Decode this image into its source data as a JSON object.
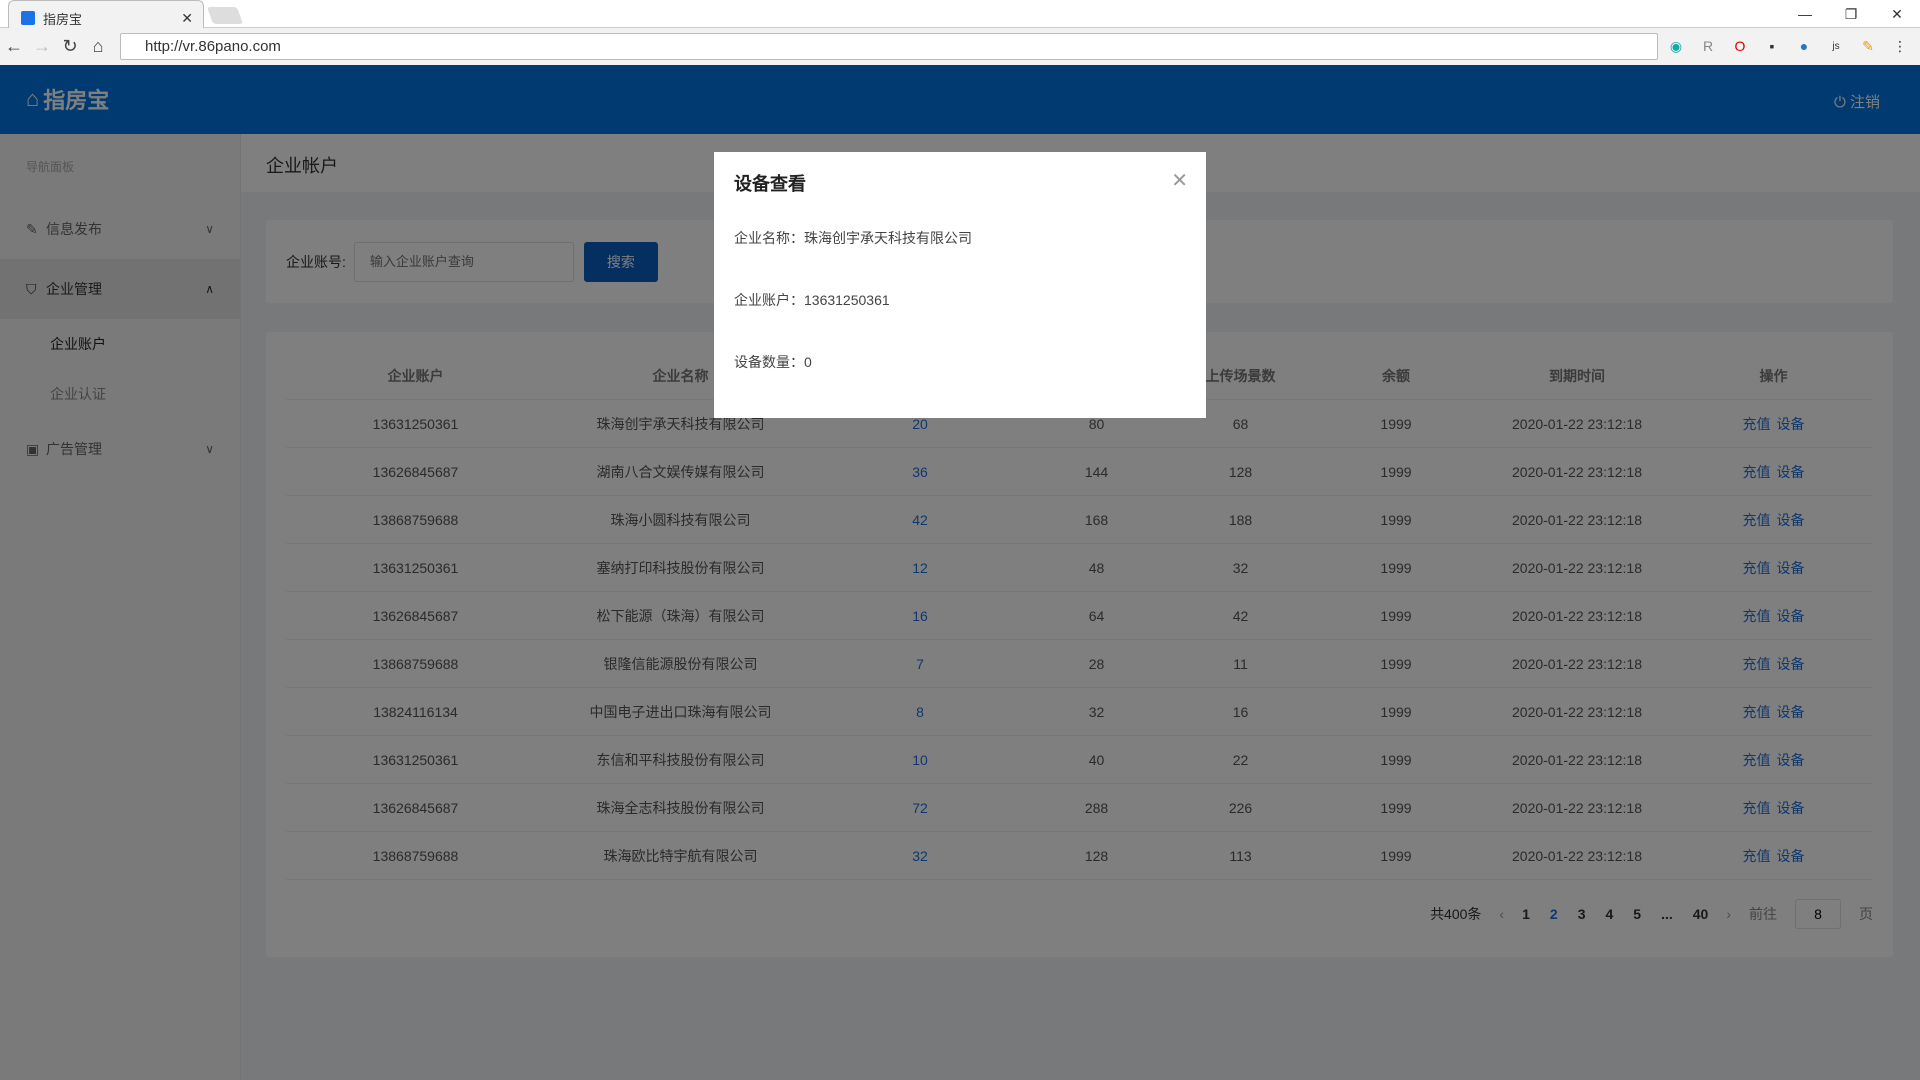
{
  "browser": {
    "tab_title": "指房宝",
    "url": "http://vr.86pano.com"
  },
  "header": {
    "logo_text": "指房宝",
    "logout_label": "注销"
  },
  "sidebar": {
    "nav_title": "导航面板",
    "menus": [
      {
        "label": "信息发布",
        "icon": "edit-icon",
        "expanded": false
      },
      {
        "label": "企业管理",
        "icon": "shield-icon",
        "expanded": true,
        "children": [
          "企业账户",
          "企业认证"
        ]
      },
      {
        "label": "广告管理",
        "icon": "ad-icon",
        "expanded": false
      }
    ]
  },
  "page": {
    "title": "企业帐户"
  },
  "search": {
    "label": "企业账号:",
    "placeholder": "输入企业账户查询",
    "button": "搜索"
  },
  "table": {
    "headers": [
      "企业账户",
      "企业名称",
      "",
      "",
      "上传场景数",
      "余额",
      "到期时间",
      "操作"
    ],
    "rows": [
      [
        "13631250361",
        "珠海创宇承天科技有限公司",
        "20",
        "80",
        "68",
        "1999",
        "2020-01-22 23:12:18"
      ],
      [
        "13626845687",
        "湖南八合文娱传媒有限公司",
        "36",
        "144",
        "128",
        "1999",
        "2020-01-22 23:12:18"
      ],
      [
        "13868759688",
        "珠海小圆科技有限公司",
        "42",
        "168",
        "188",
        "1999",
        "2020-01-22 23:12:18"
      ],
      [
        "13631250361",
        "塞纳打印科技股份有限公司",
        "12",
        "48",
        "32",
        "1999",
        "2020-01-22 23:12:18"
      ],
      [
        "13626845687",
        "松下能源（珠海）有限公司",
        "16",
        "64",
        "42",
        "1999",
        "2020-01-22 23:12:18"
      ],
      [
        "13868759688",
        "银隆信能源股份有限公司",
        "7",
        "28",
        "11",
        "1999",
        "2020-01-22 23:12:18"
      ],
      [
        "13824116134",
        "中国电子进出口珠海有限公司",
        "8",
        "32",
        "16",
        "1999",
        "2020-01-22 23:12:18"
      ],
      [
        "13631250361",
        "东信和平科技股份有限公司",
        "10",
        "40",
        "22",
        "1999",
        "2020-01-22 23:12:18"
      ],
      [
        "13626845687",
        "珠海全志科技股份有限公司",
        "72",
        "288",
        "226",
        "1999",
        "2020-01-22 23:12:18"
      ],
      [
        "13868759688",
        "珠海欧比特宇航有限公司",
        "32",
        "128",
        "113",
        "1999",
        "2020-01-22 23:12:18"
      ]
    ],
    "ops": [
      "充值",
      "设备"
    ]
  },
  "pagination": {
    "total": "共400条",
    "pages": [
      "1",
      "2",
      "3",
      "4",
      "5",
      "...",
      "40"
    ],
    "current": "2",
    "goto_label": "前往",
    "goto_value": "8",
    "page_suffix": "页"
  },
  "modal": {
    "title": "设备查看",
    "company_name": "企业名称：珠海创宇承天科技有限公司",
    "account": "企业账户：13631250361",
    "device_count": "设备数量：0"
  },
  "colors": {
    "brand": "#0074e0",
    "link": "#1e6fd9",
    "button": "#0b5fc0"
  }
}
